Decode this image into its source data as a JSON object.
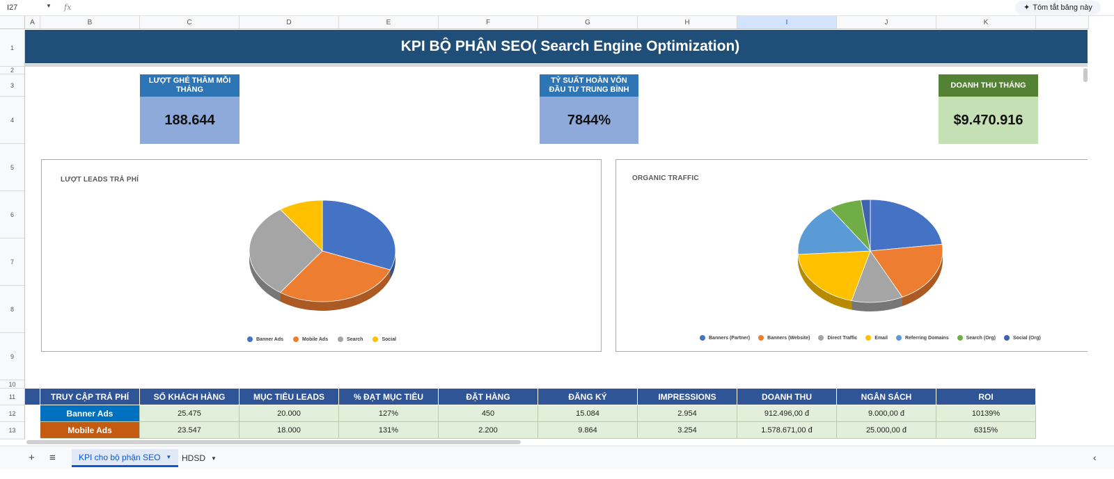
{
  "formula_bar": {
    "cell_ref": "I27",
    "fx": "fx",
    "summarize_button": "Tóm tắt bảng này"
  },
  "columns": [
    "A",
    "B",
    "C",
    "D",
    "E",
    "F",
    "G",
    "H",
    "I",
    "J",
    "K"
  ],
  "rows": [
    "1",
    "2",
    "3",
    "4",
    "5",
    "6",
    "7",
    "8",
    "9",
    "10",
    "11",
    "12",
    "13"
  ],
  "title": "KPI BỘ PHẬN SEO( Search Engine Optimization)",
  "kpis": {
    "visits": {
      "label": "LƯỢT GHÉ THĂM MỖI THÁNG",
      "value": "188.644"
    },
    "roi": {
      "label": "TỶ SUẤT HOÀN VỐN ĐẦU TƯ TRUNG BÌNH",
      "value": "7844%"
    },
    "revenue": {
      "label": "DOANH THU THÁNG",
      "value": "$9.470.916"
    }
  },
  "chart_data": [
    {
      "type": "pie",
      "title": "LƯỢT LEADS TRẢ PHÍ",
      "categories": [
        "Banner Ads",
        "Mobile Ads",
        "Search",
        "Social"
      ],
      "values": [
        25475,
        23547,
        25000,
        8000
      ],
      "colors": [
        "#4472c4",
        "#ed7d31",
        "#a5a5a5",
        "#ffc000"
      ],
      "legend": "bottom"
    },
    {
      "type": "pie",
      "title": "ORGANIC TRAFFIC",
      "categories": [
        "Banners (Partner)",
        "Banners (Website)",
        "Direct Traffic",
        "Email",
        "Referring Domains",
        "Search (Org)",
        "Social (Org)"
      ],
      "values": [
        22,
        19,
        11,
        19,
        16,
        7,
        2
      ],
      "colors": [
        "#4472c4",
        "#ed7d31",
        "#a5a5a5",
        "#ffc000",
        "#5b9bd5",
        "#70ad47",
        "#3e62ad"
      ],
      "legend": "bottom"
    }
  ],
  "table": {
    "headers": [
      "TRUY CẬP TRẢ PHÍ",
      "SỐ KHÁCH HÀNG",
      "MỤC TIÊU LEADS",
      "% ĐẠT MỤC TIÊU",
      "ĐẶT HÀNG",
      "ĐĂNG KÝ",
      "IMPRESSIONS",
      "DOANH THU",
      "NGÂN SÁCH",
      "ROI"
    ],
    "rows": [
      {
        "cells": [
          "Banner Ads",
          "25.475",
          "20.000",
          "127%",
          "450",
          "15.084",
          "2.954",
          "912.496,00 đ",
          "9.000,00 đ",
          "10139%"
        ],
        "color": "#0070c0"
      },
      {
        "cells": [
          "Mobile Ads",
          "23.547",
          "18.000",
          "131%",
          "2.200",
          "9.864",
          "3.254",
          "1.578.671,00 đ",
          "25.000,00 đ",
          "6315%"
        ],
        "color": "#c55a11"
      }
    ]
  },
  "sheet_tabs": {
    "add": "+",
    "all_sheets": "≡",
    "tabs": [
      "KPI cho bộ phận SEO",
      "HDSD"
    ],
    "active": 0
  }
}
